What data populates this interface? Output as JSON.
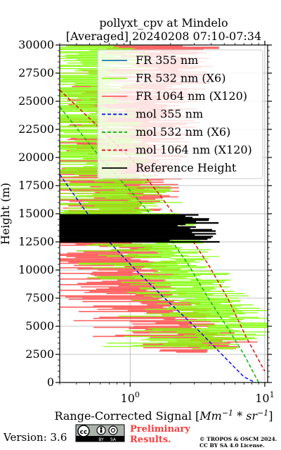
{
  "chart_data": {
    "type": "line",
    "title": "pollyxt_cpv at Mindelo",
    "subtitle": "[Averaged] 20240208 07:10-07:34",
    "ylabel": "Height (m)",
    "xlabel": "Range-Corrected Signal [Mm⁻¹*sr⁻¹]",
    "xlabel_main": "Range-Corrected Signal [",
    "xlabel_mm": "Mm",
    "xlabel_sup1": "−1",
    "xlabel_star": " * ",
    "xlabel_sr": "sr",
    "xlabel_sup2": "−1",
    "xlabel_end": "]",
    "x_scale": "log",
    "xlim": [
      0.3,
      10.5
    ],
    "ylim": [
      0,
      30000
    ],
    "y_ticks": [
      0,
      2500,
      5000,
      7500,
      10000,
      12500,
      15000,
      17500,
      20000,
      22500,
      25000,
      27500,
      30000
    ],
    "y_tick_labels": [
      "0",
      "2500",
      "5000",
      "7500",
      "10000",
      "12500",
      "15000",
      "17500",
      "20000",
      "22500",
      "25000",
      "27500",
      "30000"
    ],
    "x_ticks": [
      1,
      10
    ],
    "x_tick_labels": [
      {
        "base": "10",
        "exp": "0"
      },
      {
        "base": "10",
        "exp": "1"
      }
    ],
    "grid": true,
    "legend_position": "top-right",
    "legend": [
      {
        "label": "FR 355 nm",
        "color": "#1f77b4",
        "style": "solid"
      },
      {
        "label": "FR 532 nm (X6)",
        "color": "#80ff00",
        "style": "solid"
      },
      {
        "label": "FR 1064 nm (X120)",
        "color": "#ff6060",
        "style": "solid"
      },
      {
        "label": "mol 355 nm",
        "color": "#0000ff",
        "style": "dashed"
      },
      {
        "label": "mol 532 nm (X6)",
        "color": "#00b000",
        "style": "dashed"
      },
      {
        "label": "mol 1064 nm (X120)",
        "color": "#e00000",
        "style": "dashed"
      },
      {
        "label": "Reference Height",
        "color": "#000000",
        "style": "solid"
      }
    ],
    "series": [
      {
        "name": "mol 355 nm",
        "color": "#0000ff",
        "x": [
          0.3,
          0.45,
          0.7,
          1.1,
          1.8,
          3.0,
          4.8,
          7.0,
          8.5
        ],
        "y": [
          18500,
          15500,
          12500,
          10000,
          7500,
          5000,
          2500,
          500,
          0
        ]
      },
      {
        "name": "mol 532 nm (X6)",
        "color": "#00b000",
        "x": [
          0.3,
          0.6,
          1.1,
          1.8,
          2.7,
          3.8,
          5.2,
          7.0,
          9.0
        ],
        "y": [
          24500,
          20000,
          16500,
          13500,
          10500,
          7500,
          5000,
          2500,
          0
        ]
      },
      {
        "name": "mol 1064 nm (X120)",
        "color": "#e00000",
        "x": [
          0.3,
          0.55,
          1.0,
          1.7,
          2.6,
          3.8,
          5.3,
          7.3,
          10.0
        ],
        "y": [
          26000,
          23000,
          20000,
          16500,
          13500,
          10500,
          7500,
          4000,
          1000
        ]
      },
      {
        "name": "FR 532 nm (X6)",
        "color": "#80ff00",
        "profile_x": [
          1.0,
          0.9,
          0.8,
          0.9,
          1.2,
          1.8,
          2.6,
          3.6,
          5.0,
          7.5,
          9.5,
          6.0,
          4.5
        ],
        "profile_y": [
          30000,
          27000,
          24000,
          21000,
          18000,
          15000,
          12000,
          10000,
          8000,
          6000,
          5000,
          4000,
          3000
        ]
      },
      {
        "name": "FR 1064 nm (X120)",
        "color": "#ff6060",
        "profile_x": [
          3.0,
          2.5,
          2.0,
          1.6,
          1.4,
          1.3,
          1.5,
          2.0,
          3.0,
          4.0,
          6.0,
          5.0,
          4.0
        ],
        "profile_y": [
          30000,
          26000,
          22000,
          18000,
          15000,
          12000,
          10000,
          8000,
          6000,
          4500,
          3500,
          3000,
          2700
        ]
      },
      {
        "name": "Reference Height",
        "color": "#000000",
        "y_range": [
          12500,
          15000
        ],
        "x_max": 4.8
      }
    ]
  },
  "footer": {
    "version": "Version: 3.6",
    "license_badge": [
      "cc",
      "BY",
      "SA"
    ],
    "preliminary_line1": "Preliminary",
    "preliminary_line2": "Results.",
    "copyright_line1": "© TROPOS & OSCM 2024.",
    "copyright_line2": "CC BY SA 4.0 License."
  }
}
